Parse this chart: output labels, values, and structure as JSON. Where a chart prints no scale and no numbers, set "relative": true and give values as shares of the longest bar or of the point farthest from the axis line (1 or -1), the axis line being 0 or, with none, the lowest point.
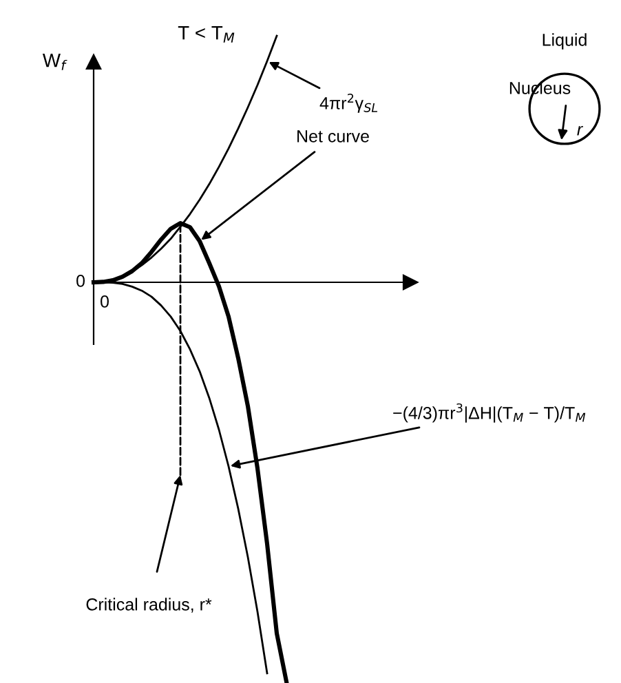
{
  "chart_data": {
    "type": "line",
    "relative": true,
    "title": "T < T$_{M}$",
    "ylabel": "W$_{f}$",
    "line_style": "solid",
    "marker": "none",
    "legend": false,
    "categories": [
      null,
      null,
      null,
      null,
      null,
      null,
      null,
      null,
      null,
      null,
      null,
      null,
      null,
      null,
      null,
      null,
      null,
      null,
      null,
      null,
      null
    ],
    "series": [
      {
        "name": "4πr$^{2}$γ$_{SL}$",
        "color": "#000000",
        "values": [
          0,
          0.002,
          0.007,
          0.016,
          0.027,
          0.043,
          0.062,
          0.084,
          0.109,
          0.139,
          0.171,
          0.207,
          0.246,
          0.289,
          0.335,
          0.385,
          0.438,
          0.494,
          0.554,
          0.617,
          null
        ]
      },
      {
        "name": "Net curve",
        "color": "#000000",
        "values": [
          0,
          0.001,
          0.005,
          0.014,
          0.028,
          0.048,
          0.076,
          0.107,
          0.134,
          0.148,
          0.138,
          0.103,
          0.048,
          -0.01,
          -0.086,
          -0.19,
          -0.31,
          -0.466,
          -0.655,
          -0.879,
          -1
        ]
      },
      {
        "name": "−(4/3)πr$^{3}$|ΔH|(T$_{M}$ − T)/T$_{M}$",
        "color": "#000000",
        "values": [
          0,
          0,
          -0.001,
          -0.004,
          -0.011,
          -0.021,
          -0.036,
          -0.058,
          -0.086,
          -0.122,
          -0.168,
          -0.223,
          -0.29,
          -0.369,
          -0.461,
          -0.567,
          -0.688,
          -0.825,
          -0.979,
          null,
          null
        ]
      }
    ],
    "annotations": [
      "0",
      "0",
      "Liquid",
      "Nucleus",
      "r",
      "Critical radius, r*"
    ]
  }
}
